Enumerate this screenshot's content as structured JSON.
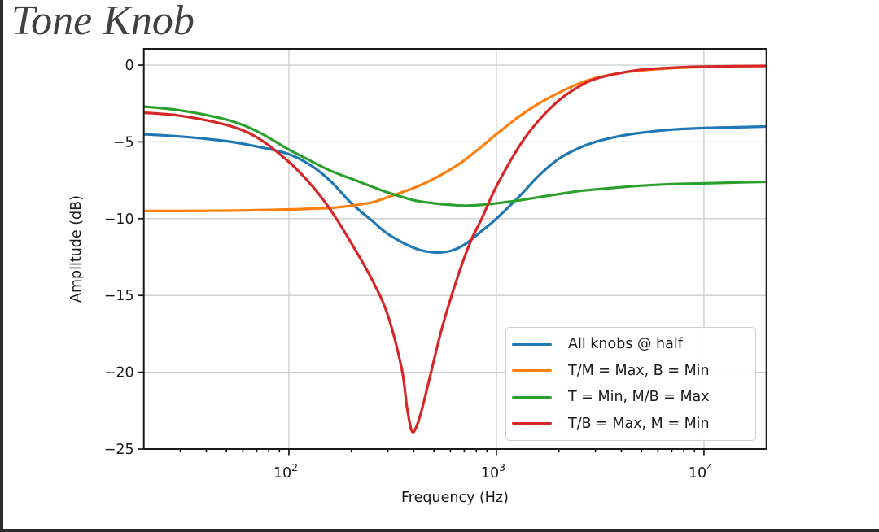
{
  "window": {
    "frame_color": "#2d2d2d"
  },
  "title": "Tone Knob",
  "chart_data": {
    "type": "line",
    "title": "Tone Knob",
    "xlabel": "Frequency (Hz)",
    "ylabel": "Amplitude (dB)",
    "x_scale": "log",
    "xlim": [
      20,
      20000
    ],
    "ylim": [
      -25,
      1.06
    ],
    "grid": true,
    "grid_color": "#cccccc",
    "axis_color": "#1a1a1a",
    "legend_position": "lower right",
    "x_major_ticks": [
      100,
      1000,
      10000
    ],
    "x_tick_labels": [
      {
        "mantissa": "10",
        "exponent": "2",
        "value": 100
      },
      {
        "mantissa": "10",
        "exponent": "3",
        "value": 1000
      },
      {
        "mantissa": "10",
        "exponent": "4",
        "value": 10000
      }
    ],
    "x_minor_ticks": [
      30,
      40,
      50,
      60,
      70,
      80,
      90,
      200,
      300,
      400,
      500,
      600,
      700,
      800,
      900,
      2000,
      3000,
      4000,
      5000,
      6000,
      7000,
      8000,
      9000
    ],
    "y_major_ticks": [
      0,
      -5,
      -10,
      -15,
      -20,
      -25
    ],
    "y_tick_labels": [
      "0",
      "−5",
      "−10",
      "−15",
      "−20",
      "−25"
    ],
    "series": [
      {
        "name": "All knobs @ half",
        "color": "#1f77b4",
        "points": [
          [
            20,
            -4.5
          ],
          [
            30,
            -4.65
          ],
          [
            50,
            -4.95
          ],
          [
            70,
            -5.3
          ],
          [
            100,
            -5.8
          ],
          [
            130,
            -6.6
          ],
          [
            160,
            -7.6
          ],
          [
            200,
            -9.0
          ],
          [
            250,
            -10.1
          ],
          [
            300,
            -11.0
          ],
          [
            400,
            -11.9
          ],
          [
            500,
            -12.2
          ],
          [
            600,
            -12.1
          ],
          [
            700,
            -11.7
          ],
          [
            850,
            -10.8
          ],
          [
            1000,
            -10.0
          ],
          [
            1300,
            -8.5
          ],
          [
            1600,
            -7.2
          ],
          [
            2000,
            -6.1
          ],
          [
            2500,
            -5.4
          ],
          [
            3000,
            -5.0
          ],
          [
            4000,
            -4.6
          ],
          [
            5000,
            -4.4
          ],
          [
            7000,
            -4.2
          ],
          [
            10000,
            -4.1
          ],
          [
            14000,
            -4.05
          ],
          [
            20000,
            -4.0
          ]
        ]
      },
      {
        "name": "T/M = Max, B = Min",
        "color": "#ff7f0e",
        "points": [
          [
            20,
            -9.5
          ],
          [
            30,
            -9.5
          ],
          [
            50,
            -9.48
          ],
          [
            70,
            -9.45
          ],
          [
            100,
            -9.4
          ],
          [
            130,
            -9.35
          ],
          [
            160,
            -9.3
          ],
          [
            200,
            -9.15
          ],
          [
            250,
            -8.95
          ],
          [
            300,
            -8.6
          ],
          [
            400,
            -8.0
          ],
          [
            500,
            -7.4
          ],
          [
            600,
            -6.8
          ],
          [
            700,
            -6.2
          ],
          [
            850,
            -5.3
          ],
          [
            1000,
            -4.5
          ],
          [
            1300,
            -3.3
          ],
          [
            1600,
            -2.5
          ],
          [
            2000,
            -1.8
          ],
          [
            2500,
            -1.2
          ],
          [
            3000,
            -0.85
          ],
          [
            4000,
            -0.5
          ],
          [
            5000,
            -0.35
          ],
          [
            7000,
            -0.2
          ],
          [
            10000,
            -0.12
          ],
          [
            14000,
            -0.08
          ],
          [
            20000,
            -0.05
          ]
        ]
      },
      {
        "name": "T = Min, M/B = Max",
        "color": "#2ca02c",
        "points": [
          [
            20,
            -2.7
          ],
          [
            30,
            -2.95
          ],
          [
            50,
            -3.55
          ],
          [
            70,
            -4.3
          ],
          [
            100,
            -5.5
          ],
          [
            130,
            -6.3
          ],
          [
            160,
            -6.9
          ],
          [
            200,
            -7.4
          ],
          [
            250,
            -7.9
          ],
          [
            300,
            -8.3
          ],
          [
            400,
            -8.8
          ],
          [
            500,
            -9.0
          ],
          [
            600,
            -9.1
          ],
          [
            700,
            -9.15
          ],
          [
            850,
            -9.1
          ],
          [
            1000,
            -9.0
          ],
          [
            1300,
            -8.8
          ],
          [
            1600,
            -8.6
          ],
          [
            2000,
            -8.4
          ],
          [
            2500,
            -8.2
          ],
          [
            3000,
            -8.1
          ],
          [
            4000,
            -7.95
          ],
          [
            5000,
            -7.85
          ],
          [
            7000,
            -7.75
          ],
          [
            10000,
            -7.7
          ],
          [
            14000,
            -7.65
          ],
          [
            20000,
            -7.6
          ]
        ]
      },
      {
        "name": "T/B = Max, M = Min",
        "color": "#d62728",
        "points": [
          [
            20,
            -3.1
          ],
          [
            30,
            -3.3
          ],
          [
            50,
            -3.9
          ],
          [
            70,
            -4.7
          ],
          [
            100,
            -6.3
          ],
          [
            130,
            -7.9
          ],
          [
            160,
            -9.5
          ],
          [
            200,
            -11.6
          ],
          [
            250,
            -13.9
          ],
          [
            300,
            -16.3
          ],
          [
            350,
            -19.8
          ],
          [
            370,
            -22.2
          ],
          [
            390,
            -23.8
          ],
          [
            410,
            -23.6
          ],
          [
            440,
            -22.3
          ],
          [
            480,
            -20.2
          ],
          [
            550,
            -17.0
          ],
          [
            650,
            -13.8
          ],
          [
            750,
            -11.5
          ],
          [
            850,
            -10.0
          ],
          [
            1000,
            -7.9
          ],
          [
            1300,
            -5.2
          ],
          [
            1600,
            -3.6
          ],
          [
            2000,
            -2.3
          ],
          [
            2500,
            -1.4
          ],
          [
            3000,
            -0.9
          ],
          [
            4000,
            -0.5
          ],
          [
            5000,
            -0.3
          ],
          [
            7000,
            -0.17
          ],
          [
            10000,
            -0.1
          ],
          [
            14000,
            -0.07
          ],
          [
            20000,
            -0.05
          ]
        ]
      }
    ]
  }
}
